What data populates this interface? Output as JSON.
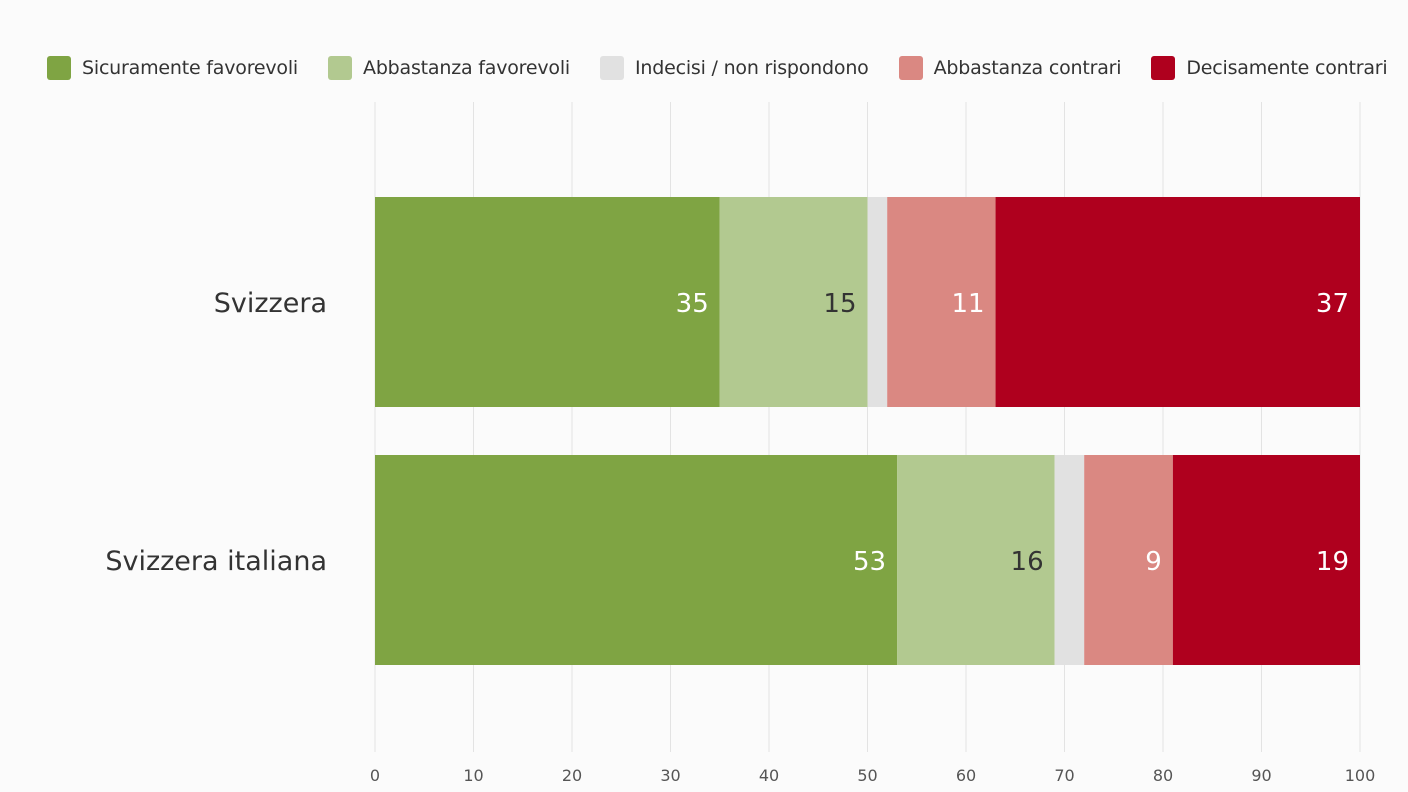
{
  "chart_data": {
    "type": "bar",
    "orientation": "horizontal",
    "stacked": true,
    "categories": [
      "Svizzera",
      "Svizzera italiana"
    ],
    "series": [
      {
        "name": "Sicuramente favorevoli",
        "color": "#7fa443",
        "label_color": "#ffffff",
        "values": [
          35,
          53
        ]
      },
      {
        "name": "Abbastanza favorevoli",
        "color": "#b2c990",
        "label_color": "#333333",
        "values": [
          15,
          16
        ]
      },
      {
        "name": "Indecisi / non rispondono",
        "color": "#e1e1e1",
        "label_color": "#333333",
        "values": [
          2,
          3
        ],
        "show_labels": false
      },
      {
        "name": "Abbastanza contrari",
        "color": "#da8882",
        "label_color": "#ffffff",
        "values": [
          11,
          9
        ]
      },
      {
        "name": "Decisamente contrari",
        "color": "#af001e",
        "label_color": "#ffffff",
        "values": [
          37,
          19
        ]
      }
    ],
    "xlim": [
      0,
      100
    ],
    "xticks": [
      "0",
      "10",
      "20",
      "30",
      "40",
      "50",
      "60",
      "70",
      "80",
      "90",
      "100"
    ],
    "grid": true,
    "legend_position": "top-left",
    "title": "",
    "xlabel": "",
    "ylabel": ""
  }
}
